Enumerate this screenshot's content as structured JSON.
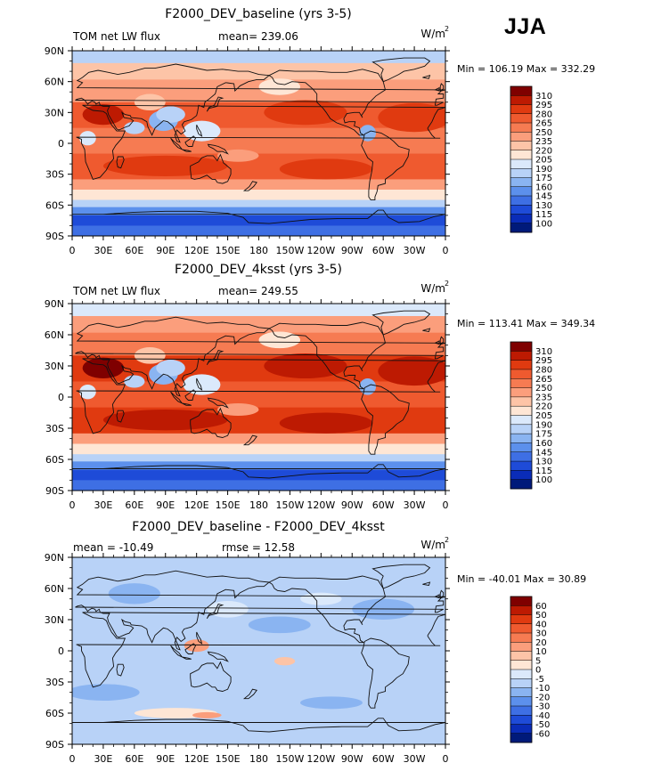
{
  "season_label": "JJA",
  "chart_data": [
    {
      "type": "heatmap",
      "title": "F2000_DEV_baseline (yrs 3-5)",
      "left_label": "TOM net LW flux",
      "center_label": "mean= 239.06",
      "units": "W/m",
      "units_sup": "2",
      "minmax_label": "Min = 106.19 Max = 332.29",
      "x_ticks": [
        "0",
        "30E",
        "60E",
        "90E",
        "120E",
        "150E",
        "180",
        "150W",
        "120W",
        "90W",
        "60W",
        "30W",
        "0"
      ],
      "y_ticks": [
        "90N",
        "60N",
        "30N",
        "0",
        "30S",
        "60S",
        "90S"
      ],
      "colorbar_levels": [
        "310",
        "295",
        "280",
        "265",
        "250",
        "235",
        "220",
        "205",
        "190",
        "175",
        "160",
        "145",
        "130",
        "115",
        "100"
      ],
      "colorbar_colors": [
        "#7f0000",
        "#bd1a02",
        "#e03a10",
        "#ef5a2f",
        "#f67b52",
        "#fb9e7c",
        "#fdc4a7",
        "#fee6d5",
        "#dbe9fb",
        "#b8d2f7",
        "#8ab4f1",
        "#5c90ec",
        "#3e6fe4",
        "#1e4bd8",
        "#0a2cb8",
        "#001a7a"
      ]
    },
    {
      "type": "heatmap",
      "title": "F2000_DEV_4ksst (yrs 3-5)",
      "left_label": "TOM net LW flux",
      "center_label": "mean= 249.55",
      "units": "W/m",
      "units_sup": "2",
      "minmax_label": "Min = 113.41 Max = 349.34",
      "x_ticks": [
        "0",
        "30E",
        "60E",
        "90E",
        "120E",
        "150E",
        "180",
        "150W",
        "120W",
        "90W",
        "60W",
        "30W",
        "0"
      ],
      "y_ticks": [
        "90N",
        "60N",
        "30N",
        "0",
        "30S",
        "60S",
        "90S"
      ],
      "colorbar_levels": [
        "310",
        "295",
        "280",
        "265",
        "250",
        "235",
        "220",
        "205",
        "190",
        "175",
        "160",
        "145",
        "130",
        "115",
        "100"
      ],
      "colorbar_colors": [
        "#7f0000",
        "#bd1a02",
        "#e03a10",
        "#ef5a2f",
        "#f67b52",
        "#fb9e7c",
        "#fdc4a7",
        "#fee6d5",
        "#dbe9fb",
        "#b8d2f7",
        "#8ab4f1",
        "#5c90ec",
        "#3e6fe4",
        "#1e4bd8",
        "#0a2cb8",
        "#001a7a"
      ]
    },
    {
      "type": "heatmap",
      "title": "F2000_DEV_baseline - F2000_DEV_4ksst",
      "left_label": "mean = -10.49",
      "center_label": "rmse = 12.58",
      "units": "W/m",
      "units_sup": "2",
      "minmax_label": "Min = -40.01 Max = 30.89",
      "x_ticks": [
        "0",
        "30E",
        "60E",
        "90E",
        "120E",
        "150E",
        "180",
        "150W",
        "120W",
        "90W",
        "60W",
        "30W",
        "0"
      ],
      "y_ticks": [
        "90N",
        "60N",
        "30N",
        "0",
        "30S",
        "60S",
        "90S"
      ],
      "colorbar_levels": [
        "60",
        "50",
        "40",
        "30",
        "20",
        "10",
        "5",
        "0",
        "-5",
        "-10",
        "-20",
        "-30",
        "-40",
        "-50",
        "-60"
      ],
      "colorbar_colors": [
        "#7f0000",
        "#bd1a02",
        "#e03a10",
        "#ef5a2f",
        "#f67b52",
        "#fb9e7c",
        "#fdc4a7",
        "#fee6d5",
        "#dbe9fb",
        "#b8d2f7",
        "#8ab4f1",
        "#5c90ec",
        "#3e6fe4",
        "#1e4bd8",
        "#0a2cb8",
        "#001a7a"
      ]
    }
  ]
}
